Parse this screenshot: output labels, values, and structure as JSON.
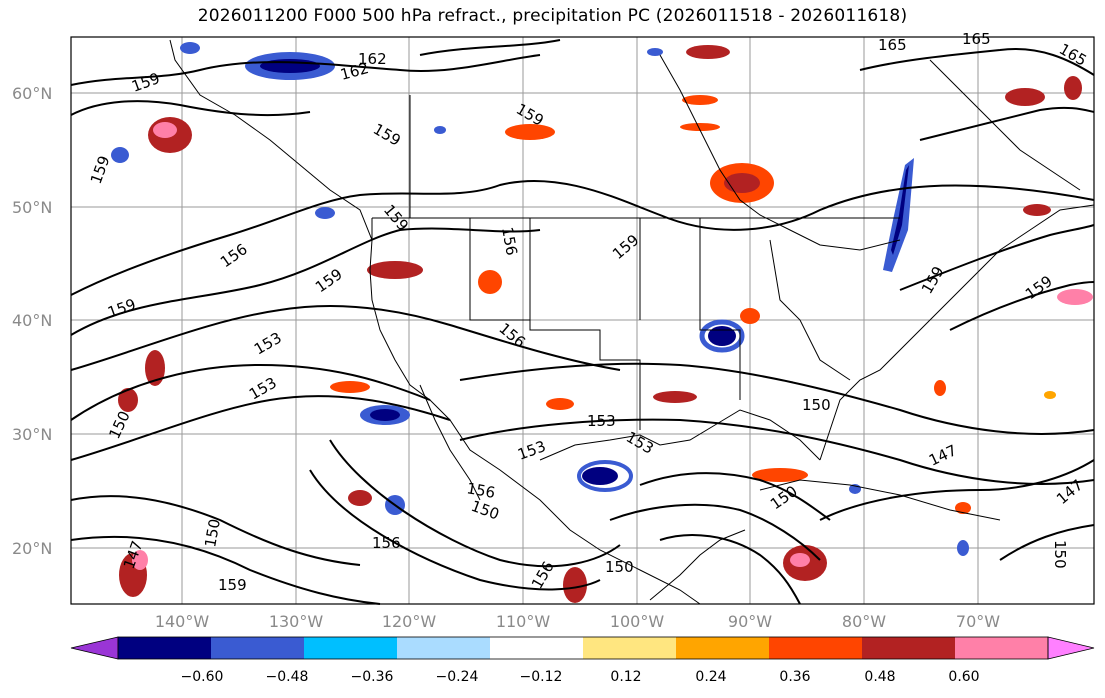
{
  "title": "2026011200 F000 500 hPa refract., precipitation PC (2026011518 - 2026011618)",
  "map": {
    "lat_labels": [
      "60°N",
      "50°N",
      "40°N",
      "30°N",
      "20°N"
    ],
    "lon_labels": [
      "140°W",
      "130°W",
      "120°W",
      "110°W",
      "100°W",
      "90°W",
      "80°W",
      "70°W"
    ],
    "contour_labels": [
      "162",
      "162",
      "165",
      "165",
      "165",
      "159",
      "159",
      "159",
      "159",
      "159",
      "159",
      "159",
      "159",
      "159",
      "159",
      "156",
      "156",
      "156",
      "156",
      "156",
      "153",
      "153",
      "153",
      "153",
      "153",
      "150",
      "150",
      "150",
      "150",
      "150",
      "150",
      "147",
      "147",
      "147",
      "159",
      "156",
      "150"
    ]
  },
  "colorbar": {
    "labels": [
      "−0.60",
      "−0.48",
      "−0.36",
      "−0.24",
      "−0.12",
      "0.12",
      "0.24",
      "0.36",
      "0.48",
      "0.60"
    ],
    "colors": [
      "#9a35d6",
      "#000080",
      "#3a5bd2",
      "#00bfff",
      "#aadcff",
      "#ffffff",
      "#ffe680",
      "#ffa500",
      "#ff4500",
      "#b22222",
      "#ff80a8",
      "#ff80ff"
    ]
  }
}
